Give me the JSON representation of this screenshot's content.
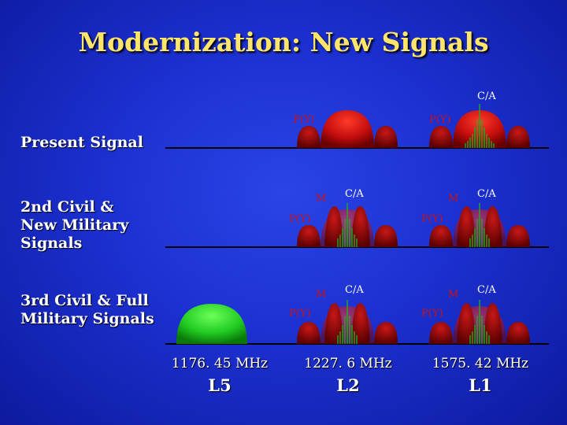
{
  "title": "Modernization: New Signals",
  "rows": [
    {
      "label": "Present Signal"
    },
    {
      "label": "2nd Civil & New Military Signals"
    },
    {
      "label": "3rd Civil & Full Military Signals"
    }
  ],
  "bands": [
    {
      "frequency": "1176. 45 MHz",
      "name": "L5"
    },
    {
      "frequency": "1227. 6 MHz",
      "name": "L2"
    },
    {
      "frequency": "1575. 42 MHz",
      "name": "L1"
    }
  ],
  "signal_labels": {
    "ca": "C/A",
    "py": "P(Y)",
    "m": "M"
  },
  "colors": {
    "title": "#ffe66a",
    "py_signal": "#cc1111",
    "ca_signal": "#22aa22",
    "l5_signal": "#22cc22",
    "background": "#1c30d0"
  }
}
